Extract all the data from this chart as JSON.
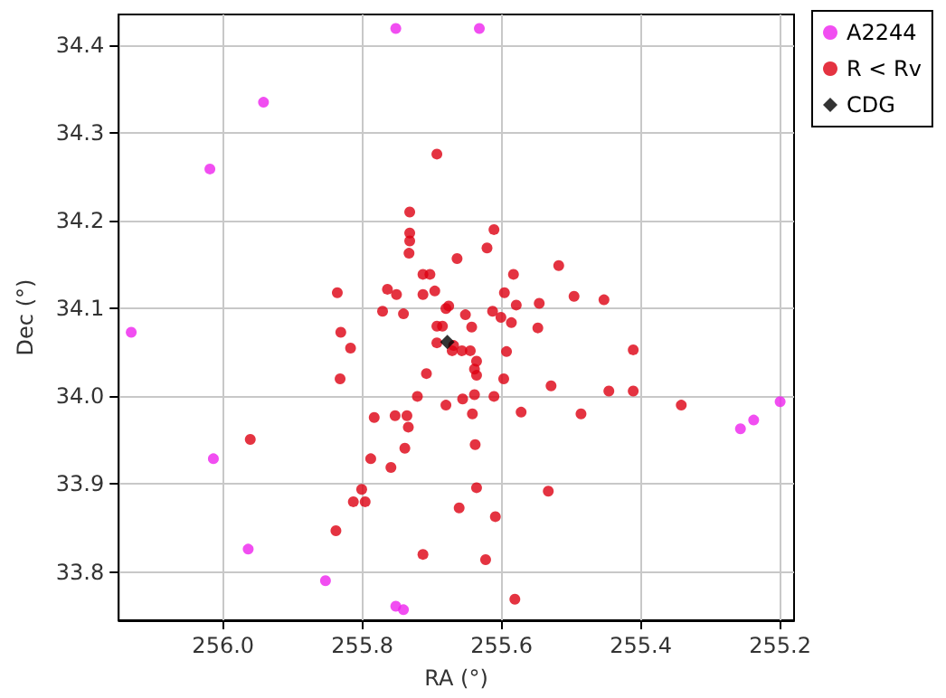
{
  "chart_data": {
    "type": "scatter",
    "xlabel": "RA (°)",
    "ylabel": "Dec (°)",
    "xlim": [
      256.15,
      255.18
    ],
    "xticks": [
      {
        "value": 256.0,
        "label": "256.0"
      },
      255.8,
      255.6,
      255.4,
      255.2
    ],
    "ylim": [
      33.745,
      34.435
    ],
    "yticks": [
      33.8,
      33.9,
      {
        "value": 34.0,
        "label": "34.0"
      },
      34.1,
      34.2,
      34.3,
      34.4
    ],
    "grid": true,
    "legend": "top right",
    "series": [
      {
        "name": "A2244",
        "color": "#ee22ee",
        "marker": "circle",
        "x": [
          255.752,
          255.632,
          255.942,
          256.019,
          256.132,
          256.014,
          255.964,
          255.853,
          255.752,
          255.741,
          255.257,
          255.238,
          255.2
        ],
        "values": [
          34.419,
          34.419,
          34.335,
          34.259,
          34.073,
          33.929,
          33.826,
          33.79,
          33.761,
          33.757,
          33.963,
          33.973,
          33.994
        ]
      },
      {
        "name": "R < Rv",
        "color": "#dd0011",
        "marker": "circle",
        "x": [
          255.693,
          255.732,
          255.732,
          255.732,
          255.733,
          255.664,
          255.713,
          255.703,
          255.836,
          255.764,
          255.751,
          255.713,
          255.696,
          255.771,
          255.741,
          255.68,
          255.676,
          255.652,
          255.693,
          255.685,
          255.643,
          255.831,
          255.611,
          255.621,
          255.518,
          255.583,
          255.596,
          255.496,
          255.453,
          255.579,
          255.546,
          255.613,
          255.601,
          255.586,
          255.548,
          255.817,
          255.832,
          255.693,
          255.669,
          255.671,
          255.657,
          255.645,
          255.636,
          255.708,
          255.721,
          255.68,
          255.656,
          255.642,
          255.783,
          255.753,
          255.736,
          255.734,
          255.739,
          255.759,
          255.788,
          255.961,
          255.801,
          255.813,
          255.796,
          255.838,
          255.713,
          255.661,
          255.636,
          255.638,
          255.639,
          255.636,
          255.639,
          255.593,
          255.411,
          255.597,
          255.529,
          255.446,
          255.411,
          255.342,
          255.611,
          255.572,
          255.486,
          255.533,
          255.609,
          255.623,
          255.581
        ],
        "values": [
          34.276,
          34.21,
          34.186,
          34.177,
          34.163,
          34.157,
          34.139,
          34.139,
          34.118,
          34.122,
          34.116,
          34.116,
          34.12,
          34.097,
          34.094,
          34.1,
          34.103,
          34.093,
          34.08,
          34.08,
          34.079,
          34.073,
          34.19,
          34.169,
          34.149,
          34.139,
          34.118,
          34.114,
          34.11,
          34.104,
          34.106,
          34.097,
          34.09,
          34.084,
          34.078,
          34.055,
          34.02,
          34.061,
          34.058,
          34.052,
          34.052,
          34.052,
          34.04,
          34.026,
          34.0,
          33.99,
          33.997,
          33.98,
          33.976,
          33.978,
          33.978,
          33.965,
          33.941,
          33.919,
          33.929,
          33.951,
          33.894,
          33.88,
          33.88,
          33.847,
          33.82,
          33.873,
          33.896,
          33.945,
          34.002,
          34.024,
          34.031,
          34.051,
          34.053,
          34.02,
          34.012,
          34.006,
          34.006,
          33.99,
          34.0,
          33.982,
          33.98,
          33.892,
          33.863,
          33.814,
          33.769
        ]
      },
      {
        "name": "CDG",
        "color": "#000000",
        "marker": "diamond",
        "x": [
          255.678
        ],
        "values": [
          34.062
        ]
      }
    ]
  }
}
